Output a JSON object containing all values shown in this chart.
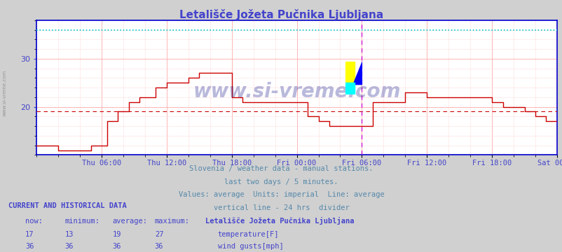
{
  "title": "Letališče Jožeta Pučnika Ljubljana",
  "title_color": "#4444cc",
  "bg_color": "#d0d0d0",
  "plot_bg_color": "#ffffff",
  "grid_color_major": "#ffaaaa",
  "grid_color_minor": "#ffdddd",
  "xlabel_color": "#4444cc",
  "ylabel_color": "#4444cc",
  "watermark": "www.si-vreme.com",
  "watermark_color": "#1a1a8c",
  "subtitle_lines": [
    "Slovenia / weather data - manual stations.",
    "last two days / 5 minutes.",
    "Values: average  Units: imperial  Line: average",
    "vertical line - 24 hrs  divider"
  ],
  "subtitle_color": "#5588aa",
  "bottom_text_color": "#4444cc",
  "temp_color": "#cc0000",
  "wind_gusts_color": "#00cccc",
  "avg_line_color": "#cc0000",
  "avg_value": 19.0,
  "max_line_color": "#00cccc",
  "max_line_value": 36.0,
  "vertical_line_color": "#cc00cc",
  "xlim": [
    0,
    48
  ],
  "ylim": [
    10,
    38
  ],
  "yticks": [
    20,
    30
  ],
  "x_tick_labels": [
    "Thu 06:00",
    "Thu 12:00",
    "Thu 18:00",
    "Fri 00:00",
    "Fri 06:00",
    "Fri 12:00",
    "Fri 18:00",
    "Sat 00:00"
  ],
  "x_tick_positions": [
    6,
    12,
    18,
    24,
    30,
    36,
    42,
    48
  ],
  "vertical_line_x": 30,
  "right_line_x": 48,
  "current_now": 17,
  "current_min": 13,
  "current_avg": 19,
  "current_max": 27,
  "wind_now": 36,
  "wind_min": 36,
  "wind_avg": 36,
  "wind_max": 36,
  "left_label": "www.si-vreme.com",
  "left_label_color": "#888888"
}
